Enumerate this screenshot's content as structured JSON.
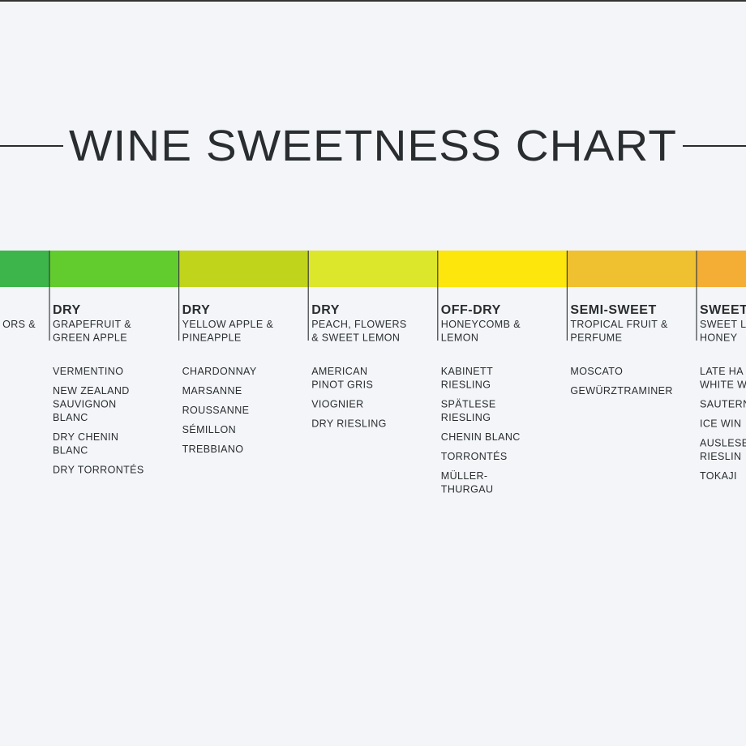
{
  "title": "WINE SWEETNESS CHART",
  "columns": [
    {
      "color": "#3db54a",
      "flavor": [
        "ORS &"
      ],
      "wines": []
    },
    {
      "color": "#62cc2e",
      "level": "DRY",
      "flavor": [
        "GRAPEFRUIT &",
        "GREEN APPLE"
      ],
      "wines": [
        [
          "VERMENTINO"
        ],
        [
          "NEW ZEALAND",
          "SAUVIGNON",
          "BLANC"
        ],
        [
          "DRY CHENIN",
          "BLANC"
        ],
        [
          "DRY TORRONTÉS"
        ]
      ]
    },
    {
      "color": "#c1d41c",
      "level": "DRY",
      "flavor": [
        "YELLOW APPLE &",
        "PINEAPPLE"
      ],
      "wines": [
        [
          "CHARDONNAY"
        ],
        [
          "MARSANNE"
        ],
        [
          "ROUSSANNE"
        ],
        [
          "SÉMILLON"
        ],
        [
          "TREBBIANO"
        ]
      ]
    },
    {
      "color": "#dce62b",
      "level": "DRY",
      "flavor": [
        "PEACH, FLOWERS",
        "& SWEET LEMON"
      ],
      "wines": [
        [
          "AMERICAN",
          "PINOT GRIS"
        ],
        [
          "VIOGNIER"
        ],
        [
          "DRY RIESLING"
        ]
      ]
    },
    {
      "color": "#fde60b",
      "level": "OFF-DRY",
      "flavor": [
        "HONEYCOMB &",
        "LEMON"
      ],
      "wines": [
        [
          "KABINETT",
          "RIESLING"
        ],
        [
          "SPÄTLESE",
          "RIESLING"
        ],
        [
          "CHENIN BLANC"
        ],
        [
          "TORRONTÉS"
        ],
        [
          "MÜLLER-",
          "THURGAU"
        ]
      ]
    },
    {
      "color": "#efc02f",
      "level": "SEMI-SWEET",
      "flavor": [
        "TROPICAL FRUIT &",
        "PERFUME"
      ],
      "wines": [
        [
          "MOSCATO"
        ],
        [
          "GEWÜRZTRAMINER"
        ]
      ]
    },
    {
      "color": "#f4ad35",
      "level": "SWEET",
      "flavor": [
        "SWEET L",
        "HONEY"
      ],
      "wines": [
        [
          "LATE HA",
          "WHITE W"
        ],
        [
          "SAUTERN"
        ],
        [
          "ICE WIN"
        ],
        [
          "AUSLESE",
          "RIESLIN"
        ],
        [
          "TOKAJI"
        ]
      ]
    }
  ]
}
